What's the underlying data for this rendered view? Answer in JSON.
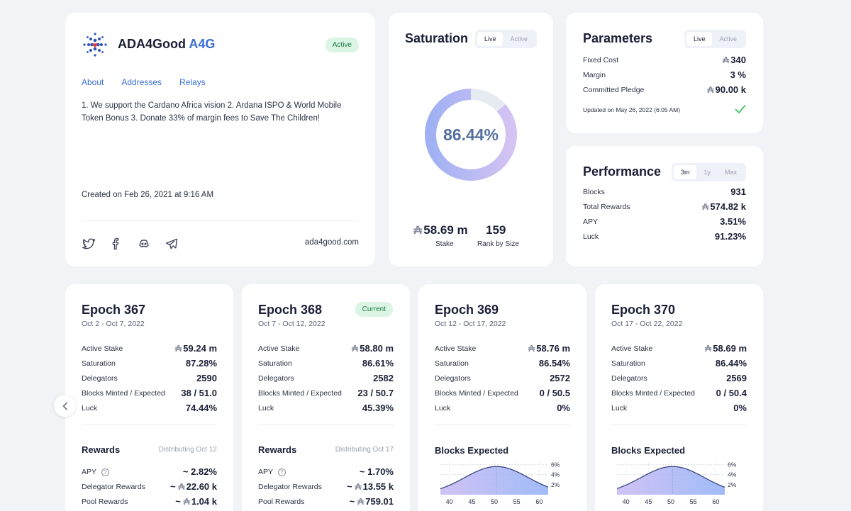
{
  "pool": {
    "name": "ADA4Good",
    "ticker": "A4G",
    "status": "Active",
    "tabs": [
      "About",
      "Addresses",
      "Relays"
    ],
    "description": "1. We support the Cardano Africa vision 2. Ardana ISPO & World Mobile Token Bonus 3. Donate 33% of margin fees to Save The Children!",
    "created": "Created on Feb 26, 2021 at 9:16 AM",
    "website": "ada4good.com",
    "social_icons": [
      "twitter-icon",
      "facebook-icon",
      "discord-icon",
      "telegram-icon"
    ]
  },
  "saturation": {
    "title": "Saturation",
    "toggle": [
      "Live",
      "Active"
    ],
    "percent_text": "86.44%",
    "percent_value": 86.44,
    "stake_symbol": "₳",
    "stake": "58.69 m",
    "stake_label": "Stake",
    "rank": "159",
    "rank_label": "Rank by Size"
  },
  "parameters": {
    "title": "Parameters",
    "toggle": [
      "Live",
      "Active"
    ],
    "rows": [
      {
        "label": "Fixed Cost",
        "symbol": "₳",
        "value": "340"
      },
      {
        "label": "Margin",
        "symbol": "",
        "value": "3 %"
      },
      {
        "label": "Committed Pledge",
        "symbol": "₳",
        "value": "90.00 k"
      }
    ],
    "updated": "Updated on May 26, 2022 (6:05 AM)"
  },
  "performance": {
    "title": "Performance",
    "toggle": [
      "3m",
      "1y",
      "Max"
    ],
    "rows": [
      {
        "label": "Blocks",
        "symbol": "",
        "value": "931"
      },
      {
        "label": "Total Rewards",
        "symbol": "₳",
        "value": "574.82 k"
      },
      {
        "label": "APY",
        "symbol": "",
        "value": "3.51%"
      },
      {
        "label": "Luck",
        "symbol": "",
        "value": "91.23%"
      }
    ]
  },
  "epoch_labels": {
    "active_stake": "Active Stake",
    "saturation": "Saturation",
    "delegators": "Delegators",
    "blocks": "Blocks Minted / Expected",
    "luck": "Luck",
    "rewards": "Rewards",
    "apy": "APY",
    "delegator_rewards": "Delegator Rewards",
    "pool_rewards": "Pool Rewards",
    "blocks_expected": "Blocks Expected",
    "current": "Current"
  },
  "epochs": [
    {
      "title": "Epoch 367",
      "dates": "Oct 2 - Oct 7, 2022",
      "active_stake": "59.24 m",
      "saturation": "87.28%",
      "delegators": "2590",
      "blocks": "38 / 51.0",
      "luck": "74.44%",
      "distributing": "Distributing Oct 12",
      "apy": "~ 2.82%",
      "delegator_rewards": "22.60 k",
      "pool_rewards": "1.04 k"
    },
    {
      "title": "Epoch 368",
      "dates": "Oct 7 - Oct 12, 2022",
      "active_stake": "58.80 m",
      "saturation": "86.61%",
      "delegators": "2582",
      "blocks": "23 / 50.7",
      "luck": "45.39%",
      "distributing": "Distributing Oct 17",
      "apy": "~ 1.70%",
      "delegator_rewards": "13.55 k",
      "pool_rewards": "759.01"
    },
    {
      "title": "Epoch 369",
      "dates": "Oct 12 - Oct 17, 2022",
      "active_stake": "58.76 m",
      "saturation": "86.54%",
      "delegators": "2572",
      "blocks": "0 / 50.5",
      "luck": "0%"
    },
    {
      "title": "Epoch 370",
      "dates": "Oct 17 - Oct 22, 2022",
      "active_stake": "58.69 m",
      "saturation": "86.44%",
      "delegators": "2569",
      "blocks": "0 / 50.4",
      "luck": "0%"
    }
  ],
  "chart_data": [
    {
      "type": "area",
      "title": "Blocks Expected",
      "x_ticks": [
        40,
        45,
        50,
        55,
        60
      ],
      "y_ticks": [
        "6%",
        "4%",
        "2%"
      ],
      "peak_x": 50.5,
      "sd": 7.1,
      "grid": true
    },
    {
      "type": "area",
      "title": "Blocks Expected",
      "x_ticks": [
        40,
        45,
        50,
        55,
        60
      ],
      "y_ticks": [
        "6%",
        "4%",
        "2%"
      ],
      "peak_x": 50.4,
      "sd": 7.1,
      "grid": true
    }
  ],
  "colors": {
    "accent": "#3b6fd4",
    "active_badge": "#dbf5e4",
    "check": "#3ec56b"
  }
}
